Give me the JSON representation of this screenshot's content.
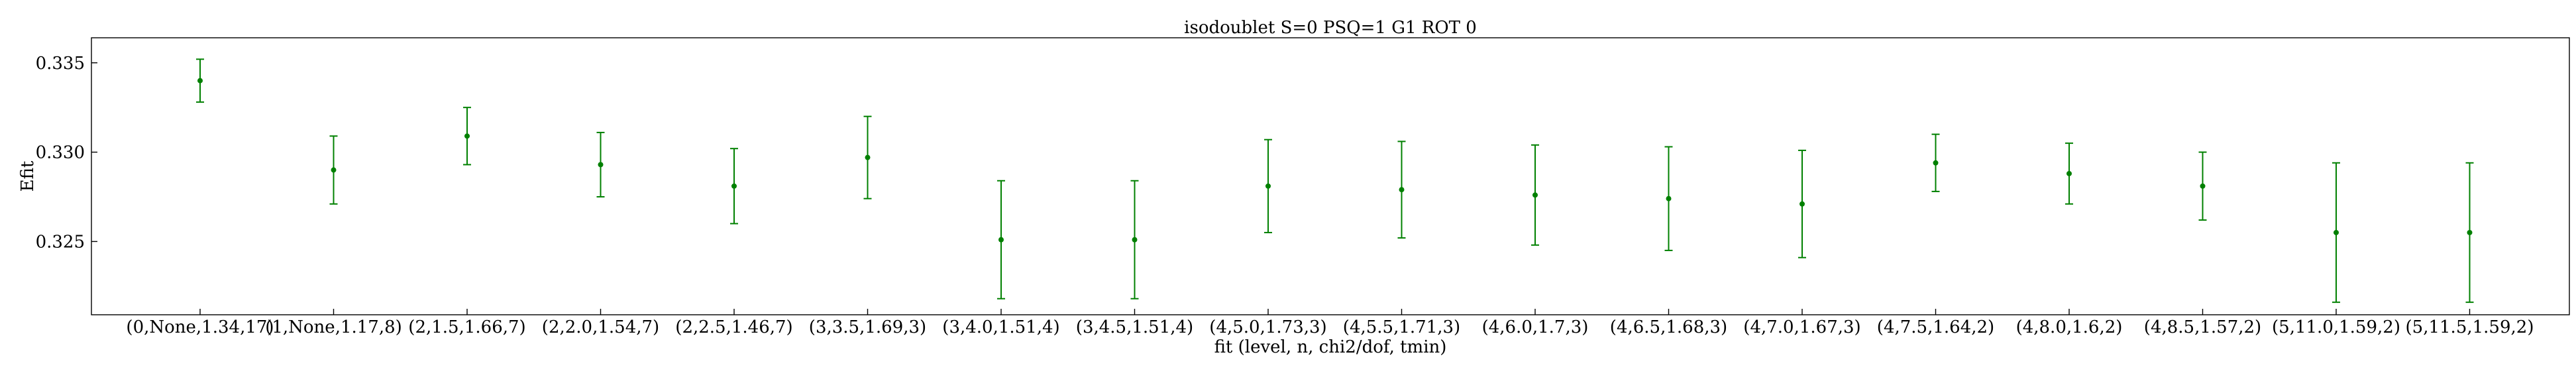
{
  "chart_data": {
    "type": "scatter",
    "title": "isodoublet S=0 PSQ=1 G1 ROT 0",
    "xlabel": "fit (level, n, chi2/dof, tmin)",
    "ylabel": "Efit",
    "ylim": [
      0.3209,
      0.3364
    ],
    "yticks": [
      0.325,
      0.33,
      0.335
    ],
    "ytick_labels": [
      "0.325",
      "0.330",
      "0.335"
    ],
    "grid": false,
    "legend": "none",
    "color": "#008000",
    "categories": [
      "(0,None,1.34,17)",
      "(1,None,1.17,8)",
      "(2,1.5,1.66,7)",
      "(2,2.0,1.54,7)",
      "(2,2.5,1.46,7)",
      "(3,3.5,1.69,3)",
      "(3,4.0,1.51,4)",
      "(3,4.5,1.51,4)",
      "(4,5.0,1.73,3)",
      "(4,5.5,1.71,3)",
      "(4,6.0,1.7,3)",
      "(4,6.5,1.68,3)",
      "(4,7.0,1.67,3)",
      "(4,7.5,1.64,2)",
      "(4,8.0,1.6,2)",
      "(4,8.5,1.57,2)",
      "(5,11.0,1.59,2)",
      "(5,11.5,1.59,2)"
    ],
    "values": [
      0.334,
      0.329,
      0.3309,
      0.3293,
      0.3281,
      0.3297,
      0.3251,
      0.3251,
      0.3281,
      0.3279,
      0.3276,
      0.3274,
      0.3271,
      0.3294,
      0.3288,
      0.3281,
      0.3255,
      0.3255
    ],
    "errors": [
      0.0012,
      0.0019,
      0.0016,
      0.0018,
      0.0021,
      0.0023,
      0.0033,
      0.0033,
      0.0026,
      0.0027,
      0.0028,
      0.0029,
      0.003,
      0.0016,
      0.0017,
      0.0019,
      0.0039,
      0.0039
    ]
  }
}
